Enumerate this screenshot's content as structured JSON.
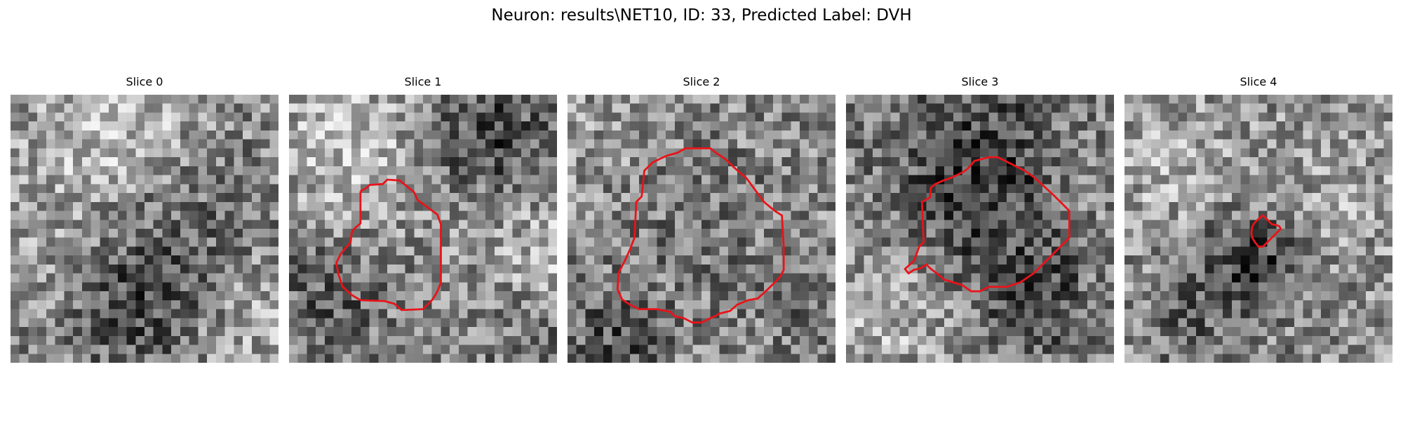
{
  "figure": {
    "title": "Neuron: results\\NET10, ID: 33, Predicted Label: DVH"
  },
  "colors": {
    "contour": "#e8141a",
    "background": "#ffffff"
  },
  "slices": [
    {
      "title": "Slice 0",
      "seed": 11,
      "has_contour": false
    },
    {
      "title": "Slice 1",
      "seed": 23,
      "has_contour": true
    },
    {
      "title": "Slice 2",
      "seed": 37,
      "has_contour": true
    },
    {
      "title": "Slice 3",
      "seed": 41,
      "has_contour": true
    },
    {
      "title": "Slice 4",
      "seed": 59,
      "has_contour": true
    }
  ]
}
